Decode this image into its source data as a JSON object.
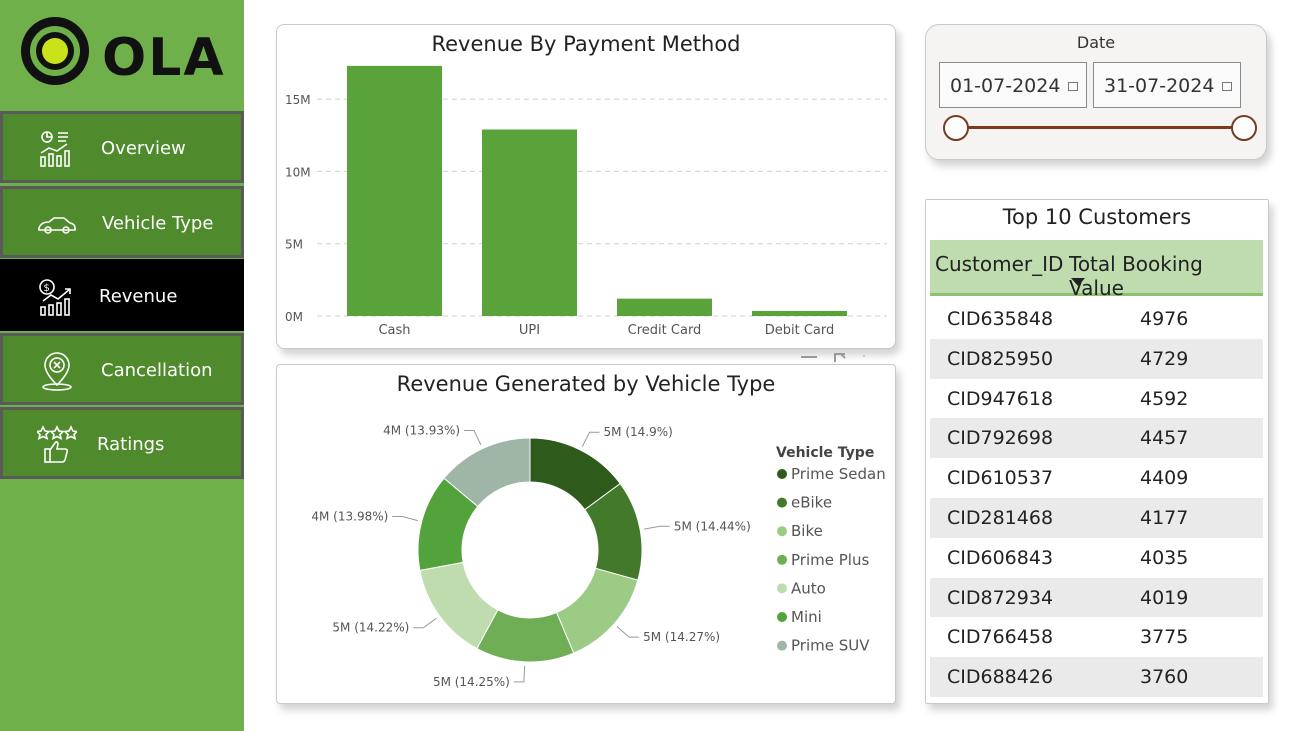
{
  "brand": {
    "name": "OLA"
  },
  "nav": [
    {
      "label": "Overview",
      "icon": "analytics-icon",
      "active": false
    },
    {
      "label": "Vehicle Type",
      "icon": "car-icon",
      "active": false
    },
    {
      "label": "Revenue",
      "icon": "revenue-chart-icon",
      "active": true
    },
    {
      "label": "Cancellation",
      "icon": "location-cancel-icon",
      "active": false
    },
    {
      "label": "Ratings",
      "icon": "thumbs-up-stars-icon",
      "active": false
    }
  ],
  "date_slicer": {
    "label": "Date",
    "start": "01-07-2024",
    "end": "31-07-2024"
  },
  "top_customers": {
    "title": "Top 10 Customers",
    "columns": [
      "Customer_ID",
      "Total Booking Value"
    ],
    "rows": [
      [
        "CID635848",
        "4976"
      ],
      [
        "CID825950",
        "4729"
      ],
      [
        "CID947618",
        "4592"
      ],
      [
        "CID792698",
        "4457"
      ],
      [
        "CID610537",
        "4409"
      ],
      [
        "CID281468",
        "4177"
      ],
      [
        "CID606843",
        "4035"
      ],
      [
        "CID872934",
        "4019"
      ],
      [
        "CID766458",
        "3775"
      ],
      [
        "CID688426",
        "3760"
      ]
    ]
  },
  "colors": {
    "sidebar": "#6fb04a",
    "bar": "#5aa33a",
    "slider": "#7a3a1e",
    "table_header": "#bfdcaf"
  },
  "chart_data": [
    {
      "type": "bar",
      "title": "Revenue By Payment Method",
      "categories": [
        "Cash",
        "UPI",
        "Credit Card",
        "Debit Card"
      ],
      "values": [
        17300000,
        12900000,
        1200000,
        350000
      ],
      "yticks": [
        "0M",
        "5M",
        "10M",
        "15M"
      ],
      "ylim": [
        0,
        17500000
      ],
      "grid": true
    },
    {
      "type": "pie",
      "title": "Revenue Generated by Vehicle Type",
      "legend_title": "Vehicle Type",
      "legend_position": "right",
      "categories": [
        "Prime Sedan",
        "eBike",
        "Bike",
        "Prime Plus",
        "Auto",
        "Mini",
        "Prime SUV"
      ],
      "labels": [
        "5M (14.9%)",
        "5M (14.44%)",
        "5M (14.27%)",
        "5M (14.25%)",
        "5M (14.22%)",
        "4M (13.98%)",
        "4M (13.93%)"
      ],
      "values": [
        14.9,
        14.44,
        14.27,
        14.25,
        14.22,
        13.98,
        13.93
      ],
      "colors": [
        "#2e5a1c",
        "#42792b",
        "#9ccb86",
        "#6fae55",
        "#bfdcaf",
        "#53a33c",
        "#9fb5a5"
      ]
    }
  ]
}
